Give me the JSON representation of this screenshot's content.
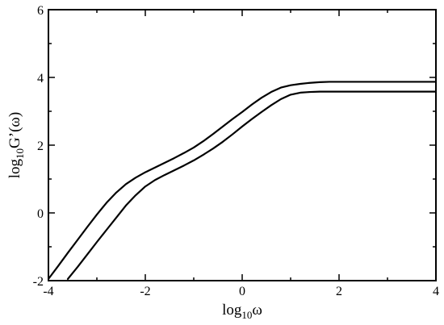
{
  "chart_data": {
    "type": "line",
    "title": "",
    "xlabel": {
      "base": "log",
      "sub": "10",
      "rest": "ω"
    },
    "ylabel": {
      "base": "log",
      "sub": "10",
      "rest": "G’(ω)"
    },
    "xlim": [
      -4,
      4
    ],
    "ylim": [
      -2,
      6
    ],
    "xticks": [
      -4,
      -2,
      0,
      2,
      4
    ],
    "yticks": [
      -2,
      0,
      2,
      4,
      6
    ],
    "grid": false,
    "legend": "none",
    "line_color": "#000000",
    "series": [
      {
        "x": [
          -4.0,
          -3.8,
          -3.6,
          -3.4,
          -3.2,
          -3.0,
          -2.8,
          -2.6,
          -2.4,
          -2.2,
          -2.0,
          -1.8,
          -1.6,
          -1.4,
          -1.2,
          -1.0,
          -0.8,
          -0.6,
          -0.4,
          -0.2,
          0.0,
          0.2,
          0.4,
          0.6,
          0.8,
          1.0,
          1.2,
          1.4,
          1.6,
          1.8,
          2.0,
          2.5,
          3.0,
          3.5,
          4.0
        ],
        "y": [
          -1.95,
          -1.57,
          -1.18,
          -0.8,
          -0.42,
          -0.05,
          0.3,
          0.6,
          0.85,
          1.04,
          1.2,
          1.34,
          1.48,
          1.62,
          1.77,
          1.93,
          2.12,
          2.33,
          2.55,
          2.77,
          2.98,
          3.2,
          3.4,
          3.57,
          3.7,
          3.77,
          3.81,
          3.84,
          3.86,
          3.87,
          3.87,
          3.87,
          3.87,
          3.87,
          3.87
        ]
      },
      {
        "x": [
          -3.6,
          -3.4,
          -3.2,
          -3.0,
          -2.8,
          -2.6,
          -2.4,
          -2.2,
          -2.0,
          -1.8,
          -1.6,
          -1.4,
          -1.2,
          -1.0,
          -0.8,
          -0.6,
          -0.4,
          -0.2,
          0.0,
          0.2,
          0.4,
          0.6,
          0.8,
          1.0,
          1.2,
          1.4,
          1.6,
          1.8,
          2.0,
          2.5,
          3.0,
          3.5,
          4.0
        ],
        "y": [
          -1.95,
          -1.6,
          -1.23,
          -0.86,
          -0.5,
          -0.14,
          0.22,
          0.52,
          0.78,
          0.97,
          1.12,
          1.26,
          1.4,
          1.55,
          1.72,
          1.9,
          2.1,
          2.32,
          2.55,
          2.77,
          2.98,
          3.18,
          3.36,
          3.49,
          3.55,
          3.57,
          3.58,
          3.58,
          3.58,
          3.58,
          3.58,
          3.58,
          3.58
        ]
      }
    ]
  }
}
